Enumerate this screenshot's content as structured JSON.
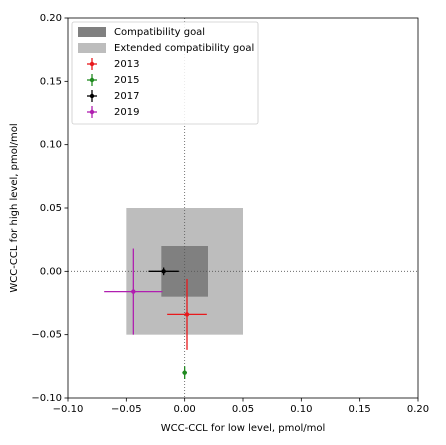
{
  "chart_data": {
    "type": "errorbar",
    "xlabel": "WCC-CCL for low level, pmol/mol",
    "ylabel": "WCC-CCL for high level, pmol/mol",
    "xlim": [
      -0.1,
      0.2
    ],
    "ylim": [
      -0.1,
      0.2
    ],
    "xticks": [
      {
        "value": -0.1,
        "label": "−0.10"
      },
      {
        "value": -0.05,
        "label": "−0.05"
      },
      {
        "value": 0,
        "label": "0.00"
      },
      {
        "value": 0.05,
        "label": "0.05"
      },
      {
        "value": 0.1,
        "label": "0.10"
      },
      {
        "value": 0.15,
        "label": "0.15"
      },
      {
        "value": 0.2,
        "label": "0.20"
      }
    ],
    "yticks": [
      {
        "value": -0.1,
        "label": "−0.10"
      },
      {
        "value": -0.05,
        "label": "−0.05"
      },
      {
        "value": 0,
        "label": "0.00"
      },
      {
        "value": 0.05,
        "label": "0.05"
      },
      {
        "value": 0.1,
        "label": "0.10"
      },
      {
        "value": 0.15,
        "label": "0.15"
      },
      {
        "value": 0.2,
        "label": "0.20"
      }
    ],
    "reference_lines": {
      "x": 0,
      "y": 0
    },
    "legend": "upper left",
    "regions": [
      {
        "name": "Extended compatibility goal",
        "color": "#bdbdbd",
        "xlim": [
          -0.05,
          0.05
        ],
        "ylim": [
          -0.05,
          0.05
        ]
      },
      {
        "name": "Compatibility goal",
        "color": "#808080",
        "xlim": [
          -0.02,
          0.02
        ],
        "ylim": [
          -0.02,
          0.02
        ]
      }
    ],
    "series": [
      {
        "name": "2013",
        "color": "#e8191c",
        "x": 0.002,
        "y": -0.034,
        "xerr": 0.017,
        "yerr": 0.028
      },
      {
        "name": "2015",
        "color": "#1f8a1f",
        "x": 0.0,
        "y": -0.08,
        "xerr": 0.002,
        "yerr": 0.005
      },
      {
        "name": "2017",
        "color": "#000000",
        "x": -0.018,
        "y": 0.0,
        "xerr": 0.013,
        "yerr": 0.003
      },
      {
        "name": "2019",
        "color": "#b01fb0",
        "x": -0.044,
        "y": -0.016,
        "xerr": 0.025,
        "yerr": 0.034
      }
    ]
  }
}
